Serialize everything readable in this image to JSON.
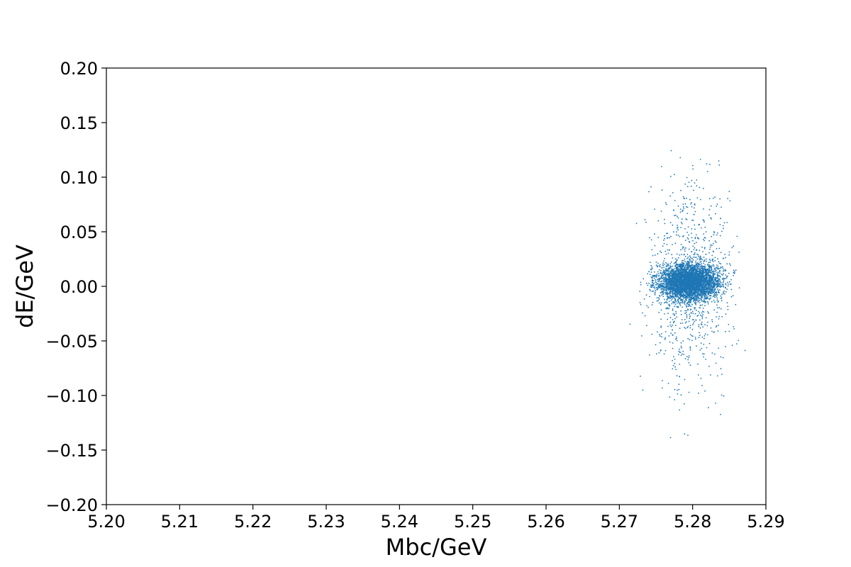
{
  "chart_data": {
    "type": "scatter",
    "title": "",
    "xlabel": "Mbc/GeV",
    "ylabel": "dE/GeV",
    "xlim": [
      5.2,
      5.29
    ],
    "ylim": [
      -0.2,
      0.2
    ],
    "xticks": [
      "5.20",
      "5.21",
      "5.22",
      "5.23",
      "5.24",
      "5.25",
      "5.26",
      "5.27",
      "5.28",
      "5.29"
    ],
    "yticks": [
      "0.20",
      "0.15",
      "0.10",
      "0.05",
      "0.00",
      "−0.05",
      "−0.10",
      "−0.15",
      "−0.20"
    ],
    "grid": false,
    "legend": "none",
    "marker_color": "#1f77b4",
    "series": [
      {
        "distribution": "gaussian_cluster",
        "core_center": [
          5.2795,
          0.004
        ],
        "core_sigma": [
          0.002,
          0.008
        ],
        "halo_sigma": [
          0.0028,
          0.045
        ],
        "core_fraction": 0.82,
        "x_range": [
          5.262,
          5.2895
        ],
        "y_range": [
          -0.185,
          0.2
        ]
      }
    ]
  }
}
